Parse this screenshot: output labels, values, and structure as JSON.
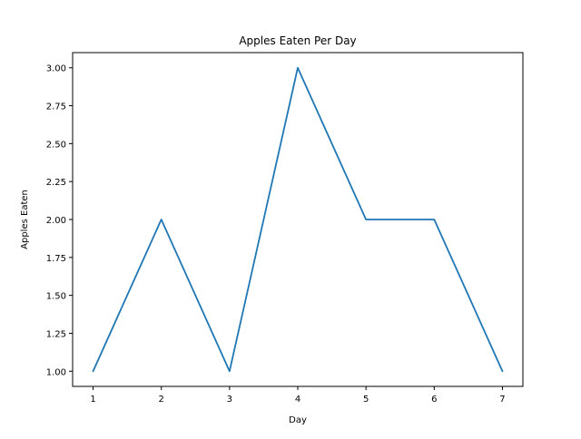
{
  "chart_data": {
    "type": "line",
    "title": "Apples Eaten Per Day",
    "xlabel": "Day",
    "ylabel": "Apples Eaten",
    "x": [
      1,
      2,
      3,
      4,
      5,
      6,
      7
    ],
    "series": [
      {
        "values": [
          1,
          2,
          1,
          3,
          2,
          2,
          1
        ]
      }
    ],
    "xlim": [
      0.7,
      7.3
    ],
    "ylim": [
      0.9,
      3.1
    ],
    "x_ticks": [
      1,
      2,
      3,
      4,
      5,
      6,
      7
    ],
    "x_tick_labels": [
      "1",
      "2",
      "3",
      "4",
      "5",
      "6",
      "7"
    ],
    "y_ticks": [
      1.0,
      1.25,
      1.5,
      1.75,
      2.0,
      2.25,
      2.5,
      2.75,
      3.0
    ],
    "y_tick_labels": [
      "1.00",
      "1.25",
      "1.50",
      "1.75",
      "2.00",
      "2.25",
      "2.50",
      "2.75",
      "3.00"
    ],
    "grid": false,
    "line_color": "#1f77b4"
  }
}
